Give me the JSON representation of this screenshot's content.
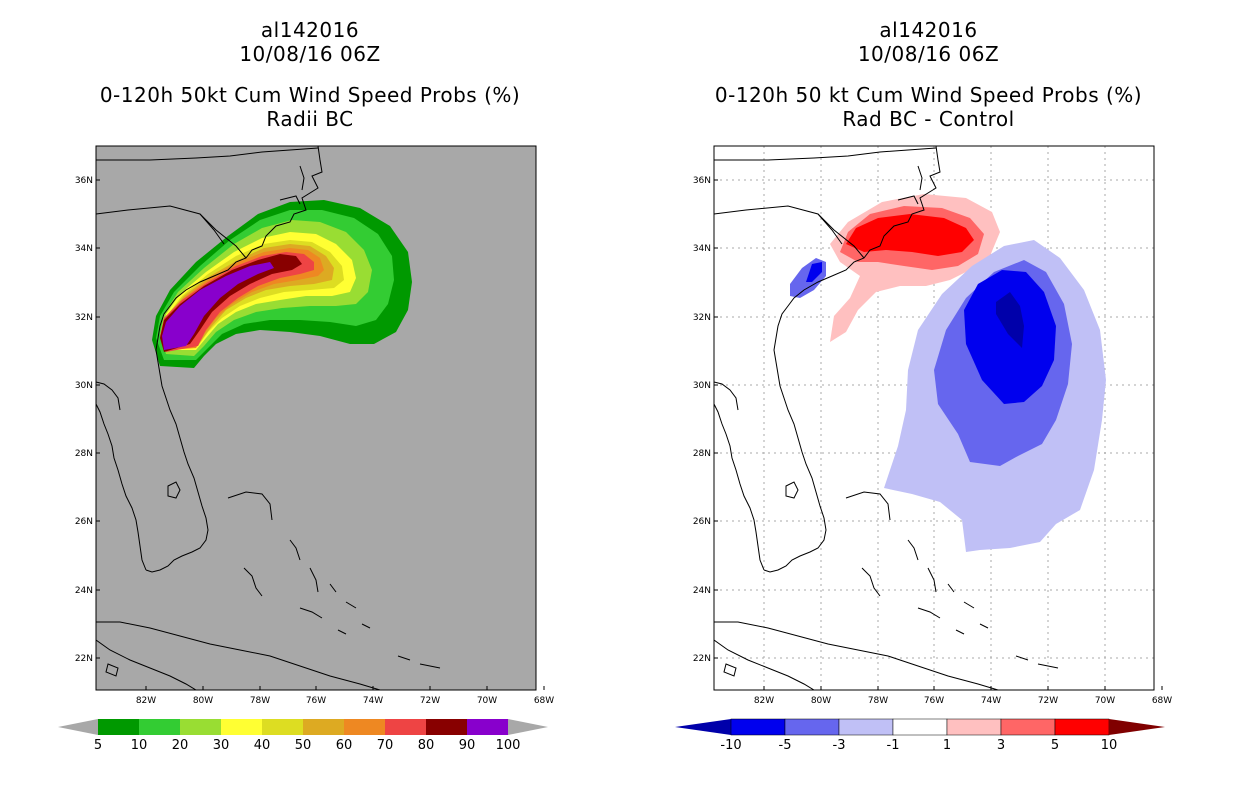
{
  "left_panel": {
    "storm_id": "al142016",
    "datetime": "10/08/16 06Z",
    "product": "0-120h 50kt Cum Wind Speed Probs (%)",
    "subtitle": "Radii BC",
    "colorbar": {
      "labels": [
        "5",
        "10",
        "20",
        "30",
        "40",
        "50",
        "60",
        "70",
        "80",
        "90",
        "100"
      ],
      "colors": [
        "#009900",
        "#33cc33",
        "#99dd33",
        "#ffff33",
        "#dddd22",
        "#ddaa22",
        "#ee8822",
        "#ee4444",
        "#880000",
        "#8800cc"
      ]
    }
  },
  "right_panel": {
    "storm_id": "al142016",
    "datetime": "10/08/16 06Z",
    "product": "0-120h 50 kt Cum Wind Speed Probs (%)",
    "subtitle": "Rad BC - Control",
    "colorbar": {
      "labels": [
        "-10",
        "-5",
        "-3",
        "-1",
        "1",
        "3",
        "5",
        "10"
      ],
      "colors": [
        "#0000aa",
        "#0000ee",
        "#6666ee",
        "#c0c0f6",
        "#ffffff",
        "#ffc0c0",
        "#ff6666",
        "#ff0000",
        "#800000"
      ]
    }
  },
  "axes": {
    "lat_labels": [
      "36N",
      "34N",
      "32N",
      "30N",
      "28N",
      "26N",
      "24N",
      "22N"
    ],
    "lon_labels": [
      "82W",
      "80W",
      "78W",
      "76W",
      "74W",
      "72W",
      "70W",
      "68W"
    ]
  },
  "colors": {
    "land_ocean_left": "#a8a8a8",
    "grid_right": "#aaaaaa"
  }
}
